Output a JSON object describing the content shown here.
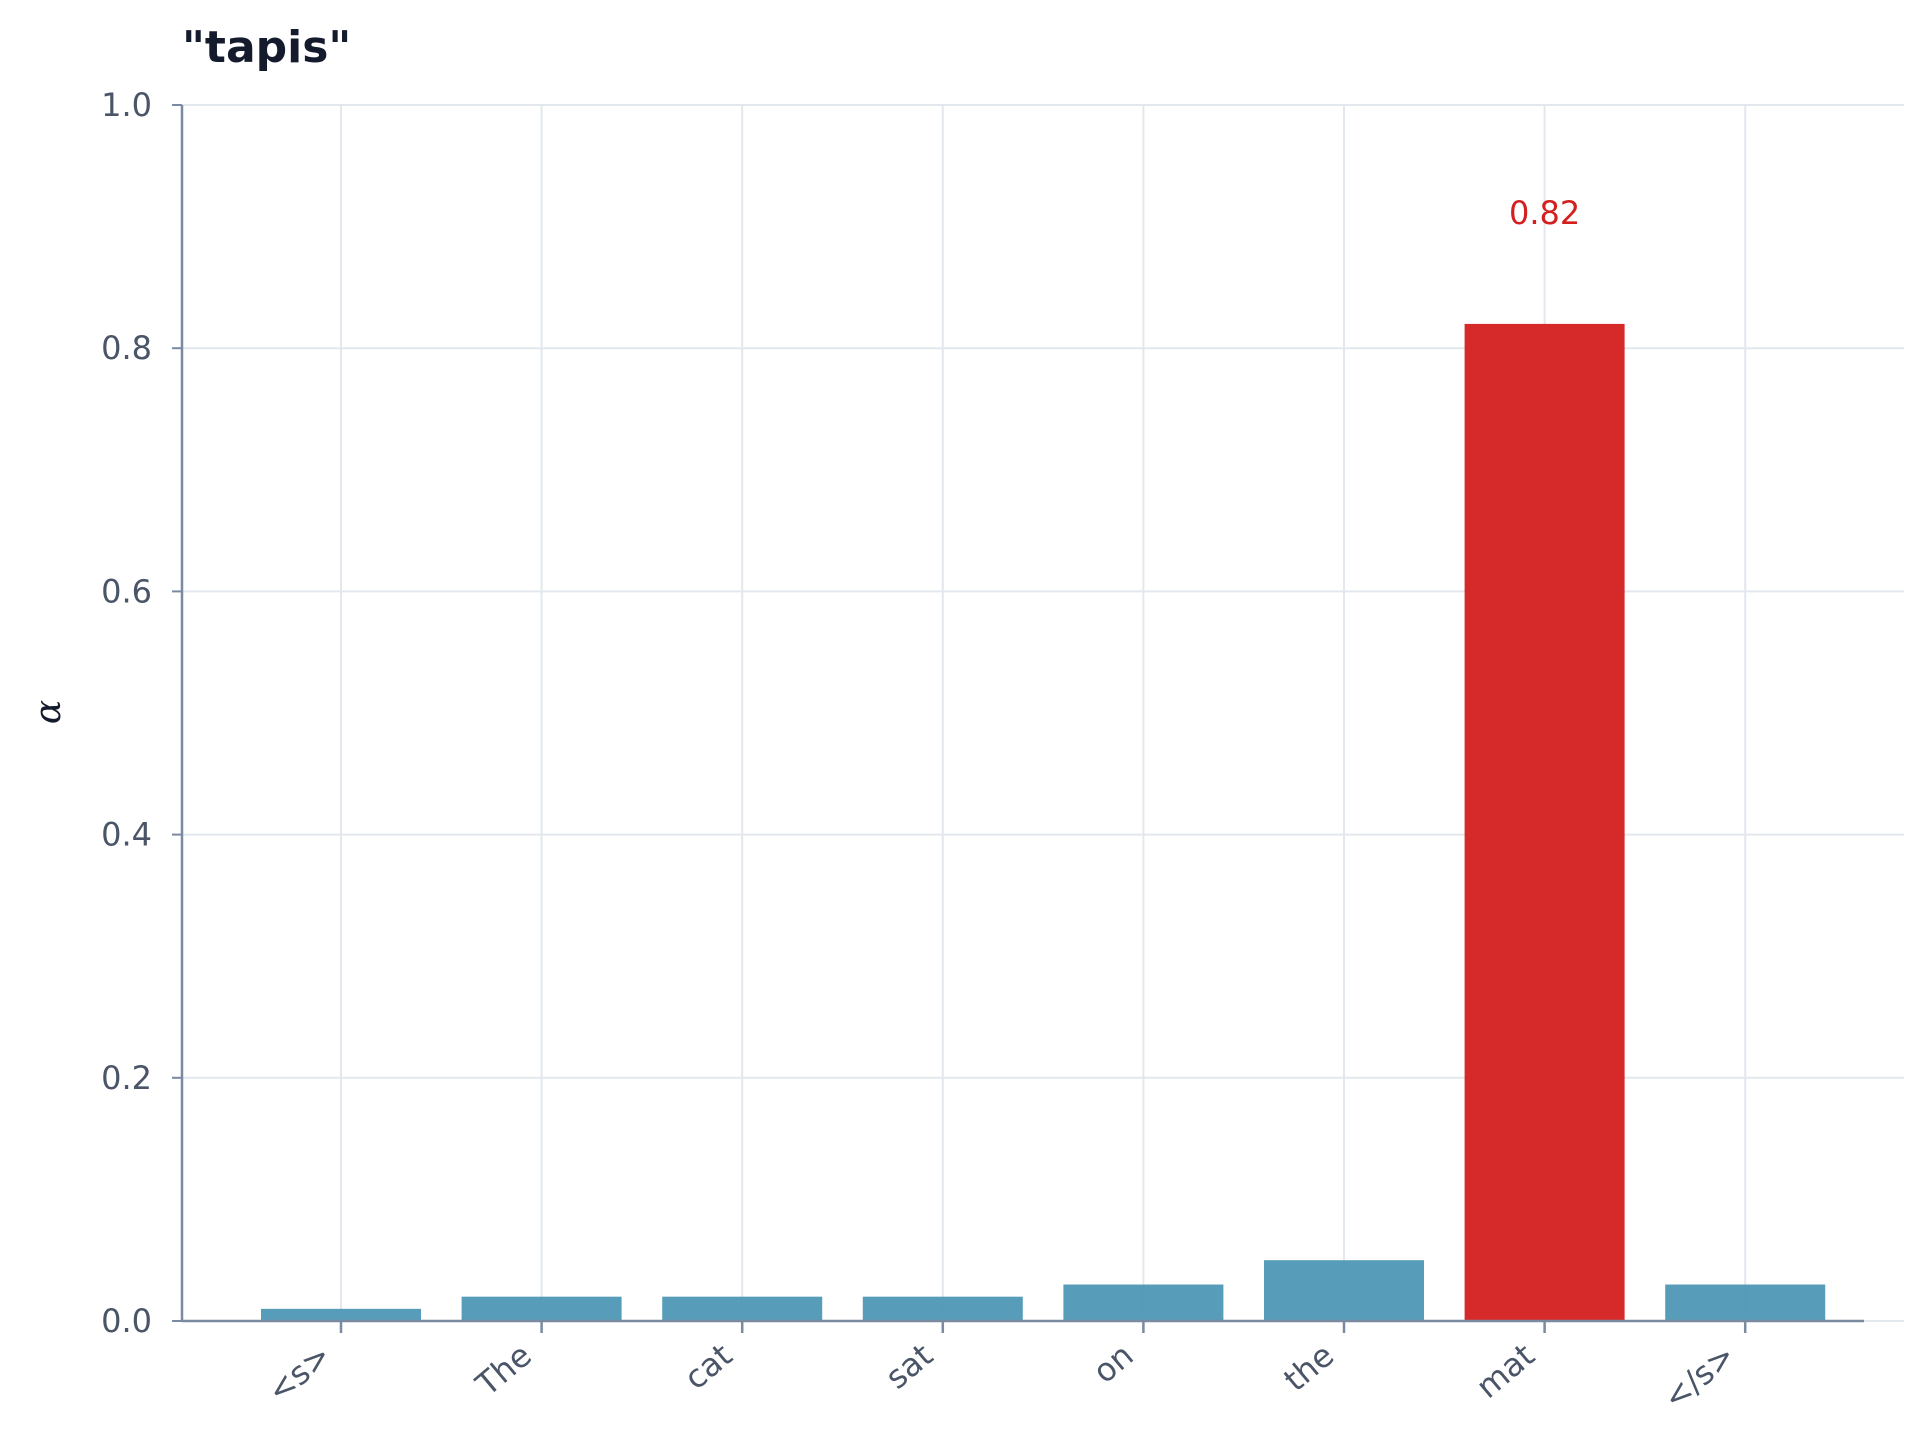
{
  "chart_data": {
    "type": "bar",
    "title": "\"tapis\"",
    "xlabel": "",
    "ylabel": "α",
    "categories": [
      "<s>",
      "The",
      "cat",
      "sat",
      "on",
      "the",
      "mat",
      "</s>"
    ],
    "values": [
      0.01,
      0.02,
      0.02,
      0.02,
      0.03,
      0.05,
      0.82,
      0.03
    ],
    "ylim": [
      0,
      1.0
    ],
    "yticks": [
      "0.0",
      "0.2",
      "0.4",
      "0.6",
      "0.8",
      "1.0"
    ],
    "grid": true,
    "highlight_index": 6,
    "highlight_label": "0.82",
    "colors": {
      "bar": "#4e98b5",
      "highlight": "#d41f1f",
      "grid": "#e2e8ee",
      "axis": "#7a8aa0"
    }
  }
}
